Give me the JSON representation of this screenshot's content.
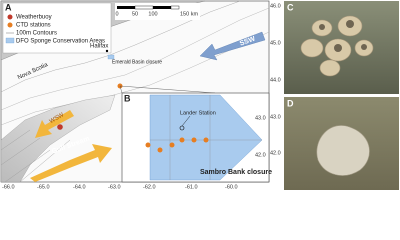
{
  "panels": {
    "a": {
      "label": "A",
      "legend": [
        "Weatherbuoy",
        "CTD stations",
        "100m Contours",
        "DFO Sponge Conservation Areas"
      ],
      "scale_bar": [
        "0",
        "50",
        "100",
        "150 km"
      ],
      "places": {
        "halifax": "Halifax",
        "nova_scotia": "Nova Scotia",
        "emerald": "Emerald Basin closure"
      },
      "arrows": {
        "ssw": "SSW",
        "wsw": "WSW",
        "gulf_stream": "Gulf Stream"
      },
      "x_axis": [
        "-66.0",
        "-65.0",
        "-64.0",
        "-63.0"
      ],
      "y_axis": [
        "46.0",
        "45.0",
        "44.0",
        "43.0",
        "42.0"
      ],
      "inset": {
        "label": "B",
        "station": "Lander Station",
        "title": "Sambro Bank closure",
        "x_axis": [
          "-62.0",
          "-61.0",
          "-60.0"
        ],
        "y_axis": [
          "43.0",
          "42.0"
        ]
      }
    },
    "c": {
      "label": "C"
    },
    "d": {
      "label": "D"
    }
  }
}
